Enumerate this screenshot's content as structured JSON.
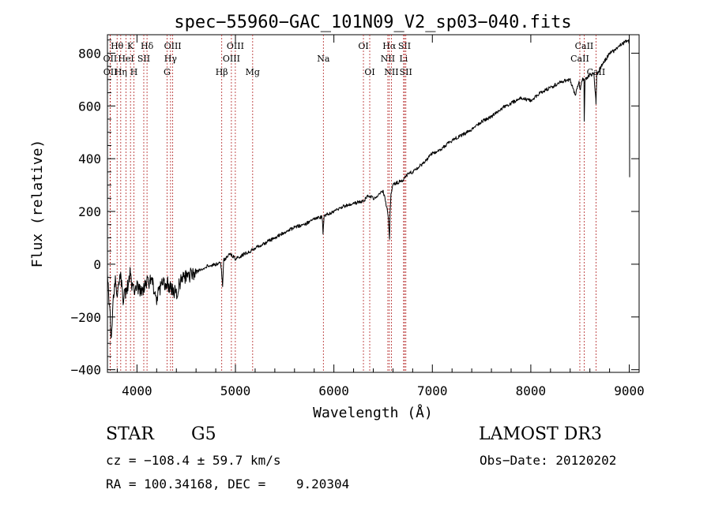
{
  "chart_data": {
    "type": "line",
    "title": "spec−55960−GAC_101N09_V2_sp03−040.fits",
    "xlabel": "Wavelength (Å)",
    "ylabel": "Flux (relative)",
    "xlim": [
      3700,
      9100
    ],
    "ylim": [
      -410,
      870
    ],
    "xticks": [
      {
        "value": 4000,
        "label": "4000"
      },
      {
        "value": 5000,
        "label": "5000"
      },
      {
        "value": 6000,
        "label": "6000"
      },
      {
        "value": 7000,
        "label": "7000"
      },
      {
        "value": 8000,
        "label": "8000"
      },
      {
        "value": 9000,
        "label": "9000"
      }
    ],
    "yticks": [
      {
        "value": -400,
        "label": "−400"
      },
      {
        "value": -200,
        "label": "−200"
      },
      {
        "value": 0,
        "label": "0"
      },
      {
        "value": 200,
        "label": "200"
      },
      {
        "value": 400,
        "label": "400"
      },
      {
        "value": 600,
        "label": "600"
      },
      {
        "value": 800,
        "label": "800"
      }
    ],
    "line_color": "#000000",
    "marker_color": "#b22222",
    "series": [
      {
        "name": "spectrum",
        "x": [
          3700,
          3720,
          3740,
          3760,
          3780,
          3800,
          3830,
          3860,
          3900,
          3930,
          3960,
          4000,
          4050,
          4100,
          4150,
          4200,
          4250,
          4300,
          4350,
          4400,
          4450,
          4500,
          4600,
          4700,
          4800,
          4850,
          4870,
          4880,
          4900,
          4950,
          5000,
          5100,
          5200,
          5300,
          5400,
          5500,
          5600,
          5700,
          5800,
          5880,
          5890,
          5900,
          5950,
          6000,
          6100,
          6200,
          6300,
          6350,
          6400,
          6450,
          6500,
          6550,
          6560,
          6565,
          6570,
          6580,
          6600,
          6650,
          6700,
          6750,
          6800,
          6900,
          7000,
          7100,
          7200,
          7300,
          7400,
          7500,
          7600,
          7700,
          7800,
          7900,
          8000,
          8100,
          8200,
          8300,
          8400,
          8450,
          8490,
          8500,
          8520,
          8540,
          8542,
          8550,
          8580,
          8600,
          8640,
          8660,
          8662,
          8670,
          8700,
          8750,
          8800,
          8850,
          8900,
          8950,
          8980,
          9000,
          9002,
          9004
        ],
        "y": [
          -50,
          -150,
          -300,
          -120,
          -60,
          -100,
          -40,
          -130,
          -90,
          -40,
          -100,
          -80,
          -110,
          -70,
          -60,
          -130,
          -80,
          -70,
          -90,
          -110,
          -60,
          -50,
          -30,
          -10,
          0,
          10,
          -80,
          15,
          20,
          40,
          20,
          40,
          60,
          80,
          100,
          120,
          140,
          150,
          170,
          180,
          120,
          185,
          190,
          200,
          220,
          230,
          240,
          260,
          250,
          260,
          280,
          190,
          130,
          100,
          190,
          270,
          300,
          310,
          320,
          340,
          350,
          380,
          420,
          440,
          470,
          490,
          510,
          540,
          560,
          590,
          610,
          630,
          620,
          650,
          670,
          690,
          700,
          640,
          690,
          660,
          700,
          700,
          540,
          700,
          710,
          720,
          720,
          620,
          610,
          720,
          740,
          770,
          800,
          810,
          830,
          840,
          850,
          840,
          700,
          330
        ]
      }
    ],
    "line_markers": [
      {
        "label": "Hθ",
        "x": 3798,
        "row": 0
      },
      {
        "label": "OII",
        "x": 3727,
        "row": 1
      },
      {
        "label": "OII",
        "x": 3729,
        "row": 2
      },
      {
        "label": "K",
        "x": 3934,
        "row": 0
      },
      {
        "label": "HeI",
        "x": 3889,
        "row": 1
      },
      {
        "label": "Hη",
        "x": 3835,
        "row": 2
      },
      {
        "label": "H",
        "x": 3969,
        "row": 2
      },
      {
        "label": "SII",
        "x": 4069,
        "row": 1
      },
      {
        "label": "Hδ",
        "x": 4102,
        "row": 0
      },
      {
        "label": "OIII",
        "x": 4363,
        "row": 0
      },
      {
        "label": "Hγ",
        "x": 4341,
        "row": 1
      },
      {
        "label": "G",
        "x": 4305,
        "row": 2
      },
      {
        "label": "Hβ",
        "x": 4861,
        "row": 2
      },
      {
        "label": "OIII",
        "x": 4999,
        "row": 0
      },
      {
        "label": "OIII",
        "x": 4959,
        "row": 1
      },
      {
        "label": "Mg",
        "x": 5175,
        "row": 2
      },
      {
        "label": "Na",
        "x": 5893,
        "row": 1
      },
      {
        "label": "OI",
        "x": 6300,
        "row": 0
      },
      {
        "label": "OI",
        "x": 6364,
        "row": 2
      },
      {
        "label": "Hα",
        "x": 6563,
        "row": 0
      },
      {
        "label": "NII",
        "x": 6548,
        "row": 1
      },
      {
        "label": "NII",
        "x": 6584,
        "row": 2
      },
      {
        "label": "SII",
        "x": 6717,
        "row": 0
      },
      {
        "label": "Li",
        "x": 6708,
        "row": 1
      },
      {
        "label": "SII",
        "x": 6731,
        "row": 2
      },
      {
        "label": "CaII",
        "x": 8542,
        "row": 0
      },
      {
        "label": "CaII",
        "x": 8498,
        "row": 1
      },
      {
        "label": "CaII",
        "x": 8662,
        "row": 2
      }
    ]
  },
  "info": {
    "object_class": "STAR",
    "spectral_subclass": "G5",
    "survey": "LAMOST DR3",
    "redshift": "cz = −108.4 ± 59.7 km/s",
    "obs_date": "Obs−Date: 20120202",
    "coordinates": "RA = 100.34168, DEC =    9.20304"
  }
}
